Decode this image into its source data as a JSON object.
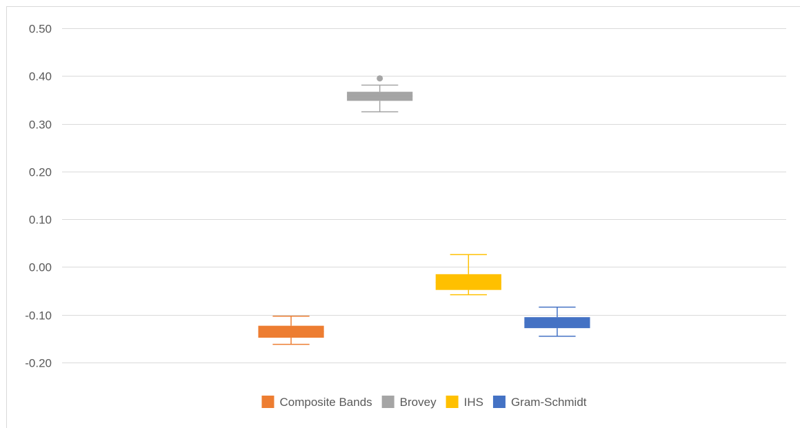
{
  "chart_data": {
    "type": "boxplot",
    "title": "",
    "xlabel": "",
    "ylabel": "",
    "ylim": [
      -0.2,
      0.5
    ],
    "yticks": [
      0.5,
      0.4,
      0.3,
      0.2,
      0.1,
      0.0,
      -0.1,
      -0.2
    ],
    "ytick_labels": [
      "0.50",
      "0.40",
      "0.30",
      "0.20",
      "0.10",
      "0.00",
      "-0.10",
      "-0.20"
    ],
    "grid": true,
    "legend_position": "bottom",
    "series": [
      {
        "name": "Composite Bands",
        "color": "#ED7D31",
        "min": -0.162,
        "q1": -0.148,
        "median": -0.135,
        "q3": -0.123,
        "max": -0.103,
        "outliers": []
      },
      {
        "name": "Brovey",
        "color": "#A5A5A5",
        "min": 0.325,
        "q1": 0.348,
        "median": 0.358,
        "q3": 0.367,
        "max": 0.381,
        "outliers": [
          0.395
        ]
      },
      {
        "name": "IHS",
        "color": "#FFC000",
        "min": -0.058,
        "q1": -0.048,
        "median": -0.032,
        "q3": -0.015,
        "max": 0.026,
        "outliers": []
      },
      {
        "name": "Gram-Schmidt",
        "color": "#4472C4",
        "min": -0.145,
        "q1": -0.128,
        "median": -0.116,
        "q3": -0.105,
        "max": -0.084,
        "outliers": []
      }
    ]
  }
}
